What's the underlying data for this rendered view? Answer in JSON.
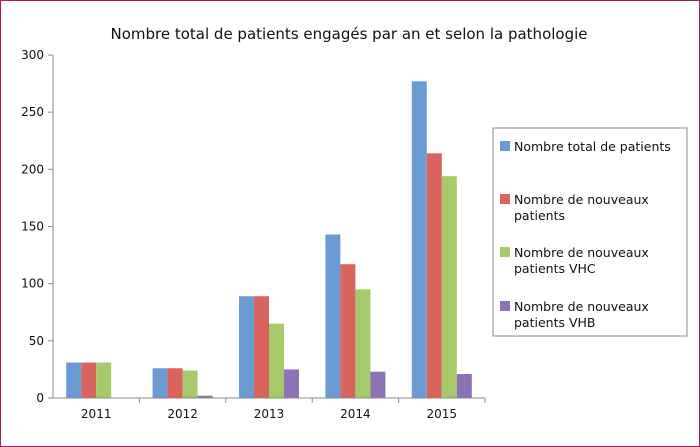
{
  "chart_data": {
    "type": "bar",
    "title": "Nombre total de patients engagés par an et selon la pathologie",
    "xlabel": "",
    "ylabel": "",
    "categories": [
      "2011",
      "2012",
      "2013",
      "2014",
      "2015"
    ],
    "series": [
      {
        "name": "Nombre total de patients",
        "color": "#6a9bd2",
        "values": [
          31,
          26,
          89,
          143,
          277
        ]
      },
      {
        "name": "Nombre de nouveaux patients",
        "color": "#d9645e",
        "values": [
          31,
          26,
          89,
          117,
          214
        ]
      },
      {
        "name": "Nombre de nouveaux patients VHC",
        "color": "#a6c96a",
        "values": [
          31,
          24,
          65,
          95,
          194
        ]
      },
      {
        "name": "Nombre de nouveaux patients VHB",
        "color": "#8e72b8",
        "values": [
          0,
          2,
          25,
          23,
          21
        ]
      }
    ],
    "ylim": [
      0,
      300
    ],
    "yticks": [
      "0",
      "50",
      "100",
      "150",
      "200",
      "250",
      "300"
    ],
    "grid": false,
    "legend": {
      "position": "right",
      "entries": [
        [
          "Nombre total de patients"
        ],
        [
          "Nombre de nouveaux",
          "patients"
        ],
        [
          "Nombre de nouveaux",
          "patients VHC"
        ],
        [
          "Nombre de nouveaux",
          "patients VHB"
        ]
      ]
    }
  }
}
